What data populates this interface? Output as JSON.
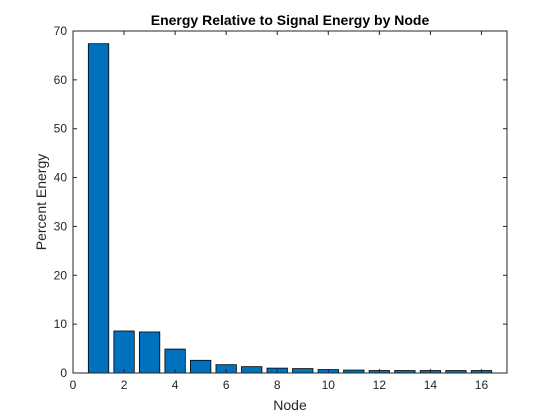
{
  "chart_data": {
    "type": "bar",
    "title": "Energy Relative to Signal Energy by Node",
    "xlabel": "Node",
    "ylabel": "Percent Energy",
    "xlim": [
      0,
      17
    ],
    "ylim": [
      0,
      70
    ],
    "xticks": [
      0,
      2,
      4,
      6,
      8,
      10,
      12,
      14,
      16
    ],
    "yticks": [
      0,
      10,
      20,
      30,
      40,
      50,
      60,
      70
    ],
    "grid": false,
    "bar_color": "#0072BD",
    "x": [
      1,
      2,
      3,
      4,
      5,
      6,
      7,
      8,
      9,
      10,
      11,
      12,
      13,
      14,
      15,
      16
    ],
    "values": [
      67.4,
      8.6,
      8.4,
      4.9,
      2.6,
      1.7,
      1.3,
      1.0,
      0.9,
      0.7,
      0.6,
      0.5,
      0.5,
      0.5,
      0.5,
      0.5
    ]
  }
}
